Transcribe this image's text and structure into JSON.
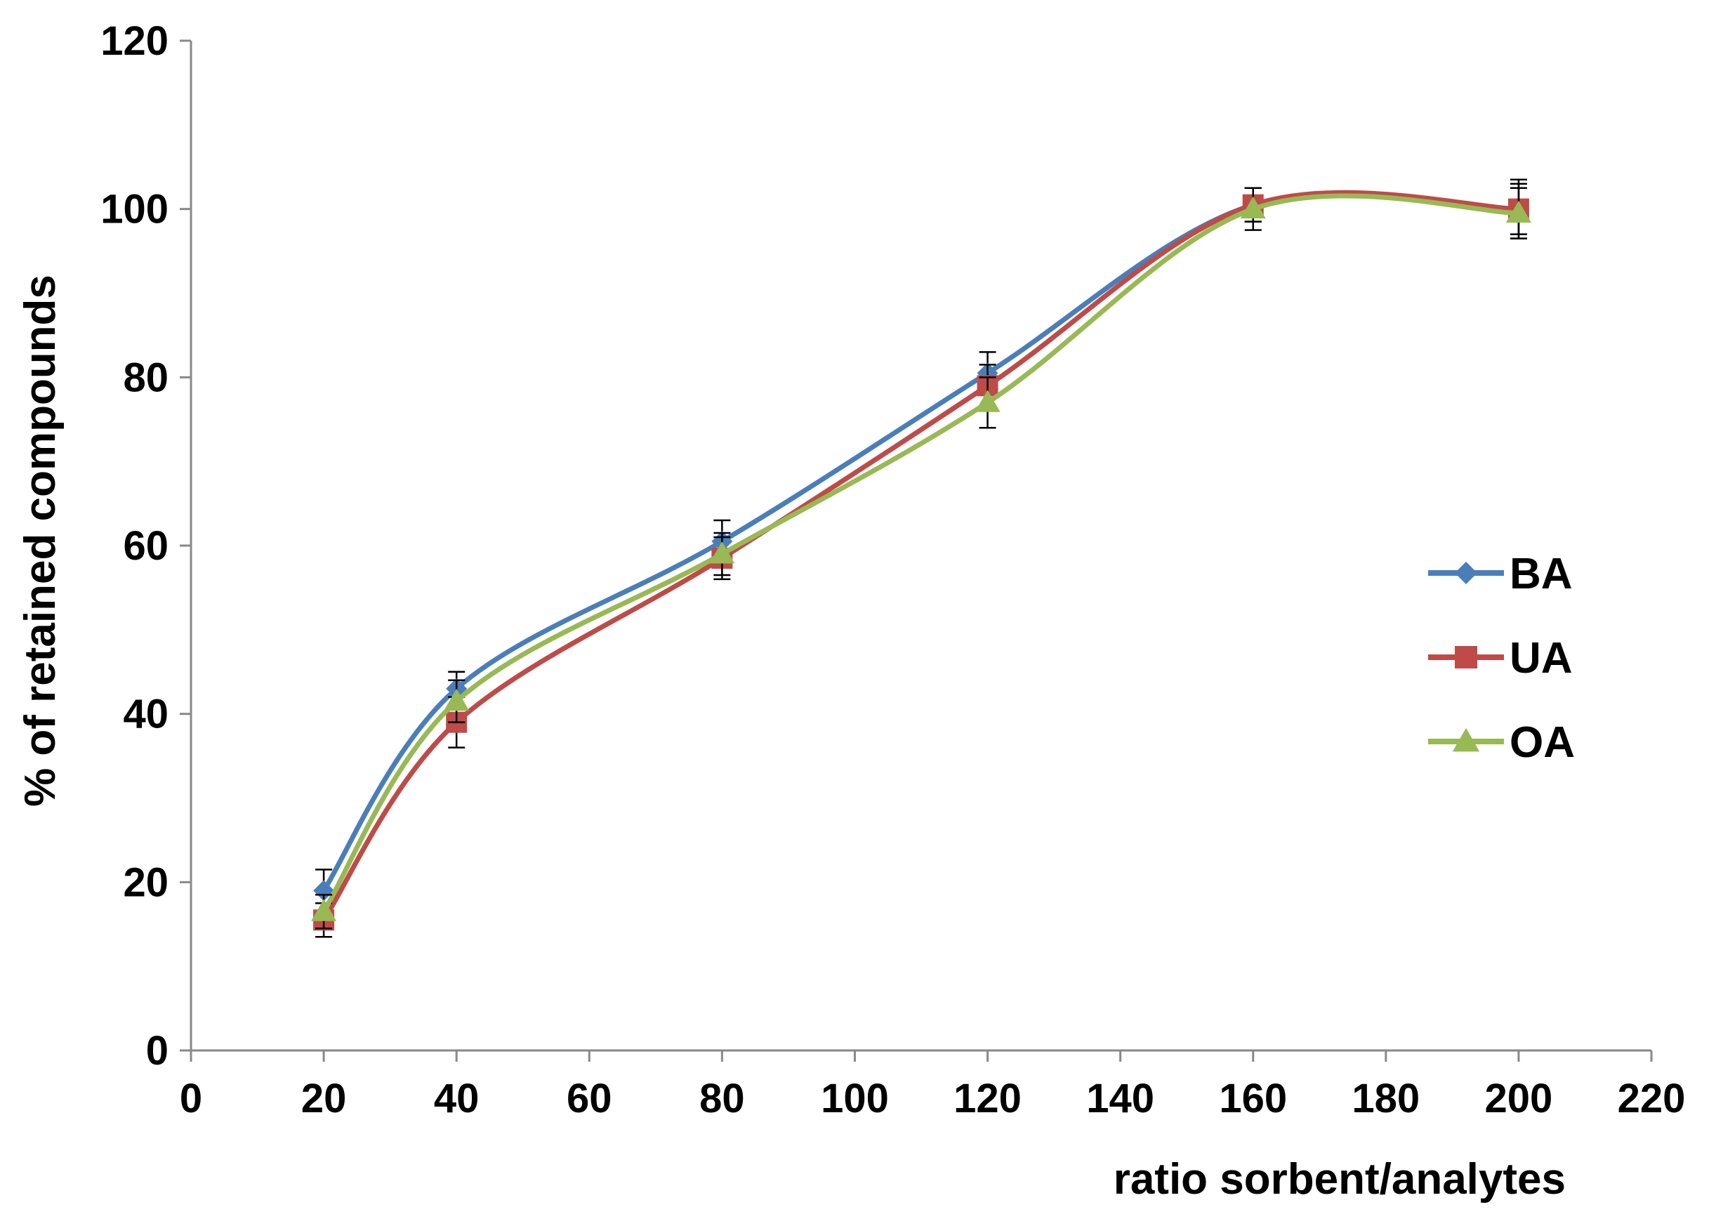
{
  "chart_data": {
    "type": "line",
    "title": "",
    "xlabel": "ratio sorbent/analytes",
    "ylabel": "% of retained  compounds",
    "xlim": [
      0,
      220
    ],
    "ylim": [
      0,
      120
    ],
    "xticks": [
      0,
      20,
      40,
      60,
      80,
      100,
      120,
      140,
      160,
      180,
      200,
      220
    ],
    "yticks": [
      0,
      20,
      40,
      60,
      80,
      100,
      120
    ],
    "grid": false,
    "smooth": true,
    "legend_position": "right",
    "x": [
      20,
      40,
      80,
      120,
      160,
      200
    ],
    "series": [
      {
        "name": "BA",
        "color": "#4a7ebb",
        "marker": "diamond",
        "values": [
          19,
          43,
          60.5,
          80.5,
          100.5,
          100
        ],
        "errors": [
          2.5,
          2,
          2.5,
          2.5,
          2,
          3.5
        ]
      },
      {
        "name": "UA",
        "color": "#be4b48",
        "marker": "square",
        "values": [
          15.5,
          39,
          58.5,
          79,
          100.5,
          100
        ],
        "errors": [
          2,
          3,
          2.5,
          2.5,
          2,
          3
        ]
      },
      {
        "name": "OA",
        "color": "#98b954",
        "marker": "triangle",
        "values": [
          16.5,
          41.5,
          59,
          77,
          100,
          99.5
        ],
        "errors": [
          2,
          2.5,
          2.5,
          3,
          2.5,
          3
        ]
      }
    ]
  }
}
